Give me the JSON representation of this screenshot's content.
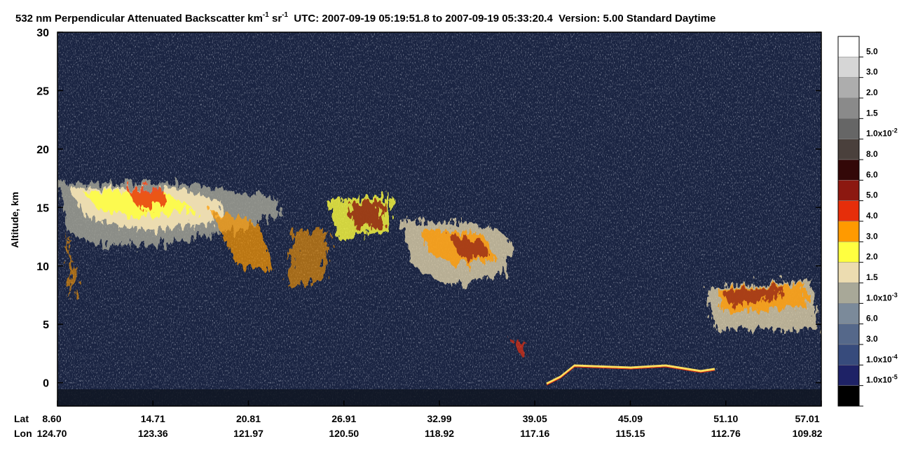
{
  "chart_data": {
    "type": "curtain",
    "title": [
      "532 nm Perpendicular Attenuated Backscatter km",
      "-1",
      " sr",
      "-1",
      "  UTC: 2007-09-19 05:19:51.8 to 2007-09-19 05:33:20.4  Version: 5.00 Standard Daytime"
    ],
    "ylabel": "Altitude, km",
    "ylim": [
      -2,
      30
    ],
    "yticks": [
      0,
      5,
      10,
      15,
      20,
      25,
      30
    ],
    "row_labels": [
      "Lat",
      "Lon"
    ],
    "lat": [
      "8.60",
      "14.71",
      "20.81",
      "26.91",
      "32.99",
      "39.05",
      "45.09",
      "51.10",
      "57.01"
    ],
    "lon": [
      "124.70",
      "123.36",
      "121.97",
      "120.50",
      "118.92",
      "117.16",
      "115.15",
      "112.76",
      "109.82"
    ],
    "colorbar_colors": [
      "#ffffff",
      "#d6d6d6",
      "#adadad",
      "#8a8a8a",
      "#666666",
      "#4a403c",
      "#330808",
      "#8c1810",
      "#e62e0a",
      "#ff9a00",
      "#ffff40",
      "#ecdcb0",
      "#a8a898",
      "#7b8a9a",
      "#55688a",
      "#374b7c",
      "#1e2266",
      "#000000"
    ],
    "colorbar_labels": [
      {
        "text": "5.0"
      },
      {
        "text": "3.0"
      },
      {
        "text": "2.0"
      },
      {
        "text": "1.5"
      },
      {
        "text": "1.0x10",
        "exp": "-2"
      },
      {
        "text": "8.0"
      },
      {
        "text": "6.0"
      },
      {
        "text": "5.0"
      },
      {
        "text": "4.0"
      },
      {
        "text": "3.0"
      },
      {
        "text": "2.0"
      },
      {
        "text": "1.5"
      },
      {
        "text": "1.0x10",
        "exp": "-3"
      },
      {
        "text": "6.0"
      },
      {
        "text": "3.0"
      },
      {
        "text": "1.0x10",
        "exp": "-4"
      },
      {
        "text": "1.0x10",
        "exp": "-5"
      }
    ]
  }
}
